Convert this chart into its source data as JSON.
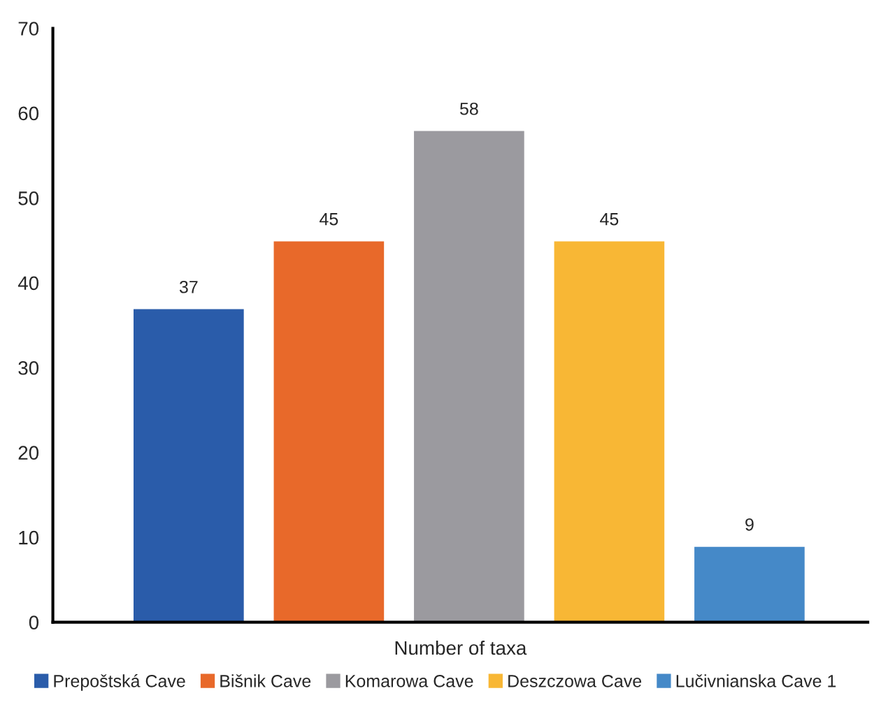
{
  "chart_data": {
    "type": "bar",
    "xlabel": "Number of taxa",
    "categories": [
      null
    ],
    "series": [
      {
        "name": "Prepoštská Cave",
        "color": "#2a5caa",
        "values": [
          37
        ]
      },
      {
        "name": "Bišnik Cave",
        "color": "#e8692a",
        "values": [
          45
        ]
      },
      {
        "name": "Komarowa Cave",
        "color": "#9b9a9f",
        "values": [
          58
        ]
      },
      {
        "name": "Deszczowa Cave",
        "color": "#f8b735",
        "values": [
          45
        ]
      },
      {
        "name": "Lučivnianska Cave 1",
        "color": "#4589c8",
        "values": [
          9
        ]
      }
    ],
    "ylim": [
      0,
      70
    ],
    "yticks": [
      0,
      10,
      20,
      30,
      40,
      50,
      60,
      70
    ],
    "data_labels": true,
    "legend": "bottom",
    "grid": false
  }
}
